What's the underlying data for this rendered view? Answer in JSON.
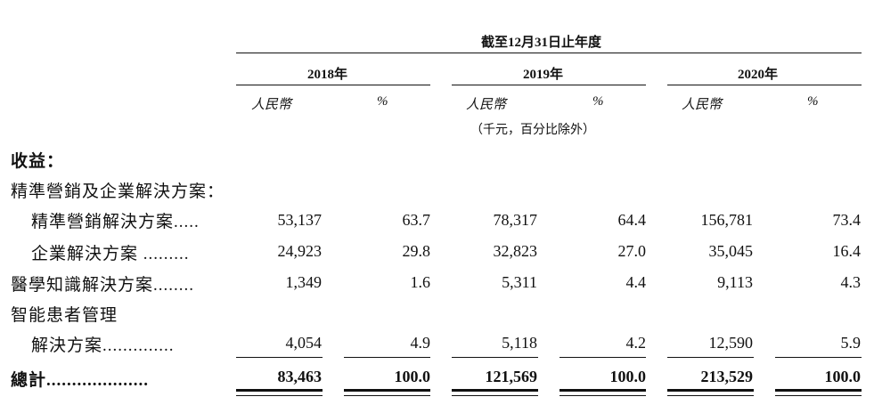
{
  "header": {
    "period_title": "截至12月31日止年度",
    "years": [
      "2018年",
      "2019年",
      "2020年"
    ],
    "currency_label": "人民幣",
    "percent_label": "%",
    "unit_note": "（千元，百分比除外）"
  },
  "rows": {
    "revenue_heading": "收益：",
    "precision_enterprise_heading": "精準營銷及企業解決方案：",
    "precision_marketing": {
      "label": "精準營銷解決方案.....",
      "values": [
        "53,137",
        "63.7",
        "78,317",
        "64.4",
        "156,781",
        "73.4"
      ]
    },
    "enterprise": {
      "label": "企業解決方案 .........",
      "values": [
        "24,923",
        "29.8",
        "32,823",
        "27.0",
        "35,045",
        "16.4"
      ]
    },
    "medical_knowledge": {
      "label": "醫學知識解決方案........",
      "values": [
        "1,349",
        "1.6",
        "5,311",
        "4.4",
        "9,113",
        "4.3"
      ]
    },
    "patient_management_heading": "智能患者管理",
    "patient_management": {
      "label": "解決方案..............",
      "values": [
        "4,054",
        "4.9",
        "5,118",
        "4.2",
        "12,590",
        "5.9"
      ]
    },
    "total": {
      "label": "總計....................",
      "values": [
        "83,463",
        "100.0",
        "121,569",
        "100.0",
        "213,529",
        "100.0"
      ]
    }
  }
}
